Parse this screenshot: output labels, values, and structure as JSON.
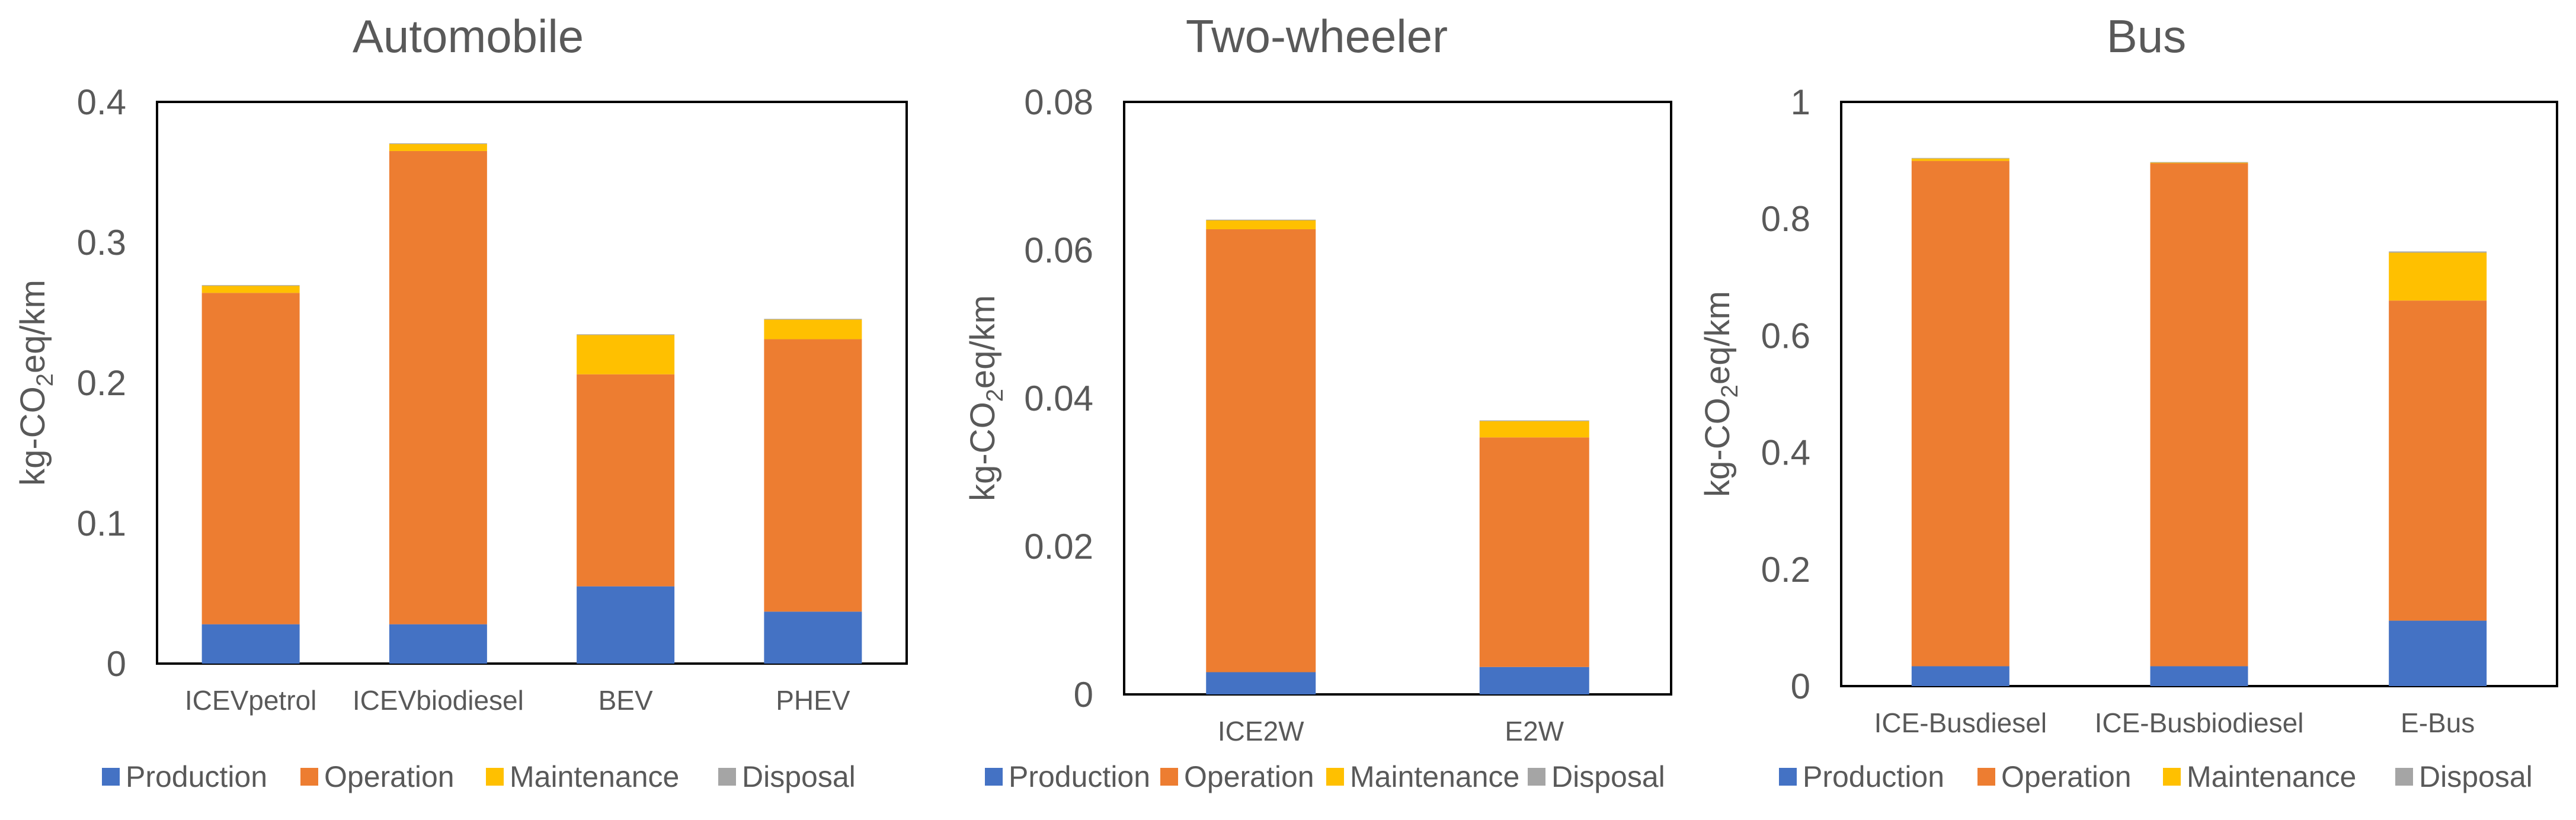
{
  "series_colors": {
    "Production": "#4472C4",
    "Operation": "#ED7D31",
    "Maintenance": "#FFC000",
    "Disposal": "#A5A5A5"
  },
  "ylabel": {
    "base": "kg-CO",
    "sub": "2",
    "rest": "eq/km"
  },
  "chart_data": [
    {
      "type": "bar",
      "stacked": true,
      "title": "Automobile",
      "xlabel": "",
      "ylabel": "kg-CO2eq/km",
      "ylim": [
        0,
        0.4
      ],
      "yticks": [
        "0",
        "0.1",
        "0.2",
        "0.3",
        "0.4"
      ],
      "categories": [
        "ICEVpetrol",
        "ICEVbiodiesel",
        "BEV",
        "PHEV"
      ],
      "series": [
        {
          "name": "Production",
          "values": [
            0.028,
            0.028,
            0.055,
            0.037
          ]
        },
        {
          "name": "Operation",
          "values": [
            0.236,
            0.337,
            0.151,
            0.194
          ]
        },
        {
          "name": "Maintenance",
          "values": [
            0.005,
            0.005,
            0.028,
            0.014
          ]
        },
        {
          "name": "Disposal",
          "values": [
            0.0005,
            0.0005,
            0.0005,
            0.0005
          ]
        }
      ],
      "legend": [
        "Production",
        "Operation",
        "Maintenance",
        "Disposal"
      ]
    },
    {
      "type": "bar",
      "stacked": true,
      "title": "Two-wheeler",
      "xlabel": "",
      "ylabel": "kg-CO2eq/km",
      "ylim": [
        0,
        0.08
      ],
      "yticks": [
        "0",
        "0.02",
        "0.04",
        "0.06",
        "0.08"
      ],
      "categories": [
        "ICE2W",
        "E2W"
      ],
      "series": [
        {
          "name": "Production",
          "values": [
            0.003,
            0.0037
          ]
        },
        {
          "name": "Operation",
          "values": [
            0.0598,
            0.031
          ]
        },
        {
          "name": "Maintenance",
          "values": [
            0.0012,
            0.0022
          ]
        },
        {
          "name": "Disposal",
          "values": [
            0.0001,
            0.0001
          ]
        }
      ],
      "legend": [
        "Production",
        "Operation",
        "Maintenance",
        "Disposal"
      ]
    },
    {
      "type": "bar",
      "stacked": true,
      "title": "Bus",
      "xlabel": "",
      "ylabel": "kg-CO2eq/km",
      "ylim": [
        0,
        1
      ],
      "yticks": [
        "0",
        "0.2",
        "0.4",
        "0.6",
        "0.8",
        "1"
      ],
      "categories": [
        "ICE-Busdiesel",
        "ICE-Busbiodiesel",
        "E-Bus"
      ],
      "series": [
        {
          "name": "Production",
          "values": [
            0.034,
            0.034,
            0.112
          ]
        },
        {
          "name": "Operation",
          "values": [
            0.865,
            0.861,
            0.548
          ]
        },
        {
          "name": "Maintenance",
          "values": [
            0.004,
            0.001,
            0.082
          ]
        },
        {
          "name": "Disposal",
          "values": [
            0.001,
            0.001,
            0.002
          ]
        }
      ],
      "legend": [
        "Production",
        "Operation",
        "Maintenance",
        "Disposal"
      ]
    }
  ]
}
